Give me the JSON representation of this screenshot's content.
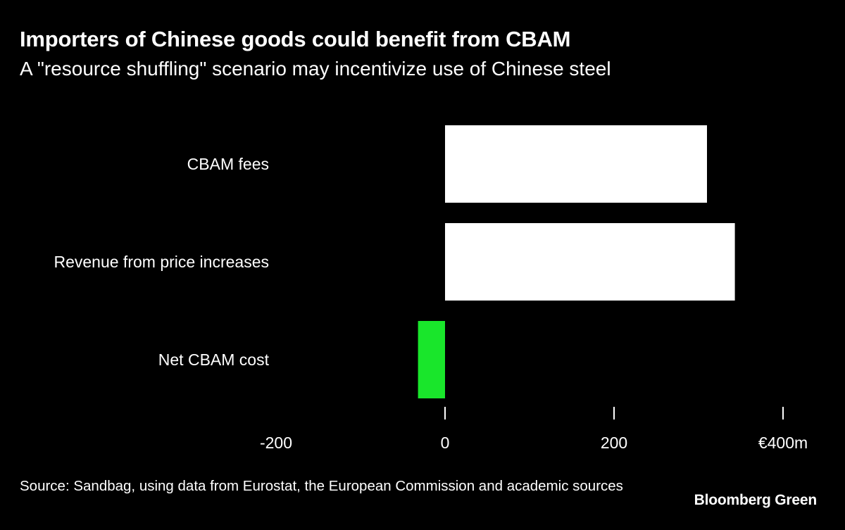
{
  "header": {
    "title": "Importers of Chinese goods could benefit from CBAM",
    "subtitle": "A \"resource shuffling\" scenario may incentivize use of Chinese steel"
  },
  "chart_data": {
    "type": "bar",
    "orientation": "horizontal",
    "title": "Importers of Chinese goods could benefit from CBAM",
    "subtitle": "A \"resource shuffling\" scenario may incentivize use of Chinese steel",
    "categories": [
      "CBAM fees",
      "Revenue from price increases",
      "Net CBAM cost"
    ],
    "values": [
      310,
      343,
      -32
    ],
    "colors": [
      "#ffffff",
      "#ffffff",
      "#19e62b"
    ],
    "x_ticks": [
      -200,
      0,
      200,
      400
    ],
    "x_tick_labels": [
      "-200",
      "0",
      "200",
      "€400m"
    ],
    "xlim": [
      -200,
      400
    ],
    "grid": false,
    "xlabel": "",
    "ylabel": ""
  },
  "footer": {
    "source": "Source: Sandbag, using data from Eurostat, the European Commission and academic sources",
    "brand": "Bloomberg Green"
  }
}
